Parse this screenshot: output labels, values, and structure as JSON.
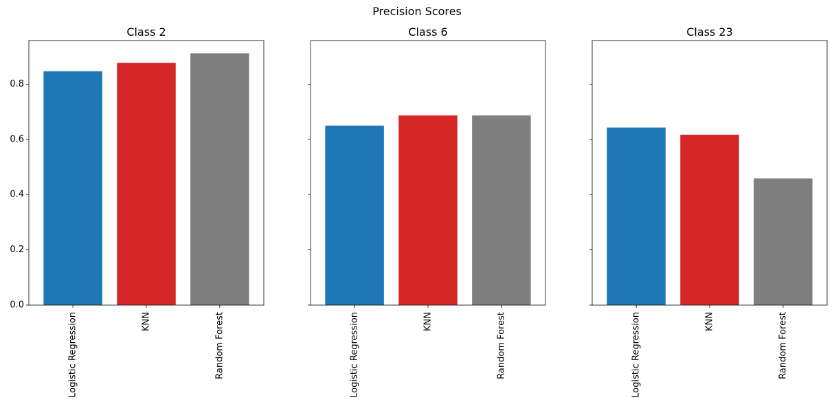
{
  "figure": {
    "suptitle": "Precision Scores"
  },
  "chart_data": [
    {
      "type": "bar",
      "title": "Class 2",
      "categories": [
        "Logistic Regression",
        "KNN",
        "Random Forest"
      ],
      "values": [
        0.847,
        0.877,
        0.912
      ],
      "colors": [
        "#1f77b4",
        "#d62728",
        "#7f7f7f"
      ],
      "ylim": [
        0,
        0.958
      ],
      "yticks": [
        "0.0",
        "0.2",
        "0.4",
        "0.6",
        "0.8"
      ],
      "shared_y": true,
      "xtick_rotation": "vertical",
      "grid": false
    },
    {
      "type": "bar",
      "title": "Class 6",
      "categories": [
        "Logistic Regression",
        "KNN",
        "Random Forest"
      ],
      "values": [
        0.65,
        0.687,
        0.687
      ],
      "colors": [
        "#1f77b4",
        "#d62728",
        "#7f7f7f"
      ],
      "ylim": [
        0,
        0.958
      ],
      "yticks": [
        "0.0",
        "0.2",
        "0.4",
        "0.6",
        "0.8"
      ],
      "shared_y": true,
      "xtick_rotation": "vertical",
      "grid": false
    },
    {
      "type": "bar",
      "title": "Class 23",
      "categories": [
        "Logistic Regression",
        "KNN",
        "Random Forest"
      ],
      "values": [
        0.643,
        0.617,
        0.459
      ],
      "colors": [
        "#1f77b4",
        "#d62728",
        "#7f7f7f"
      ],
      "ylim": [
        0,
        0.958
      ],
      "yticks": [
        "0.0",
        "0.2",
        "0.4",
        "0.6",
        "0.8"
      ],
      "shared_y": true,
      "xtick_rotation": "vertical",
      "grid": false
    }
  ]
}
